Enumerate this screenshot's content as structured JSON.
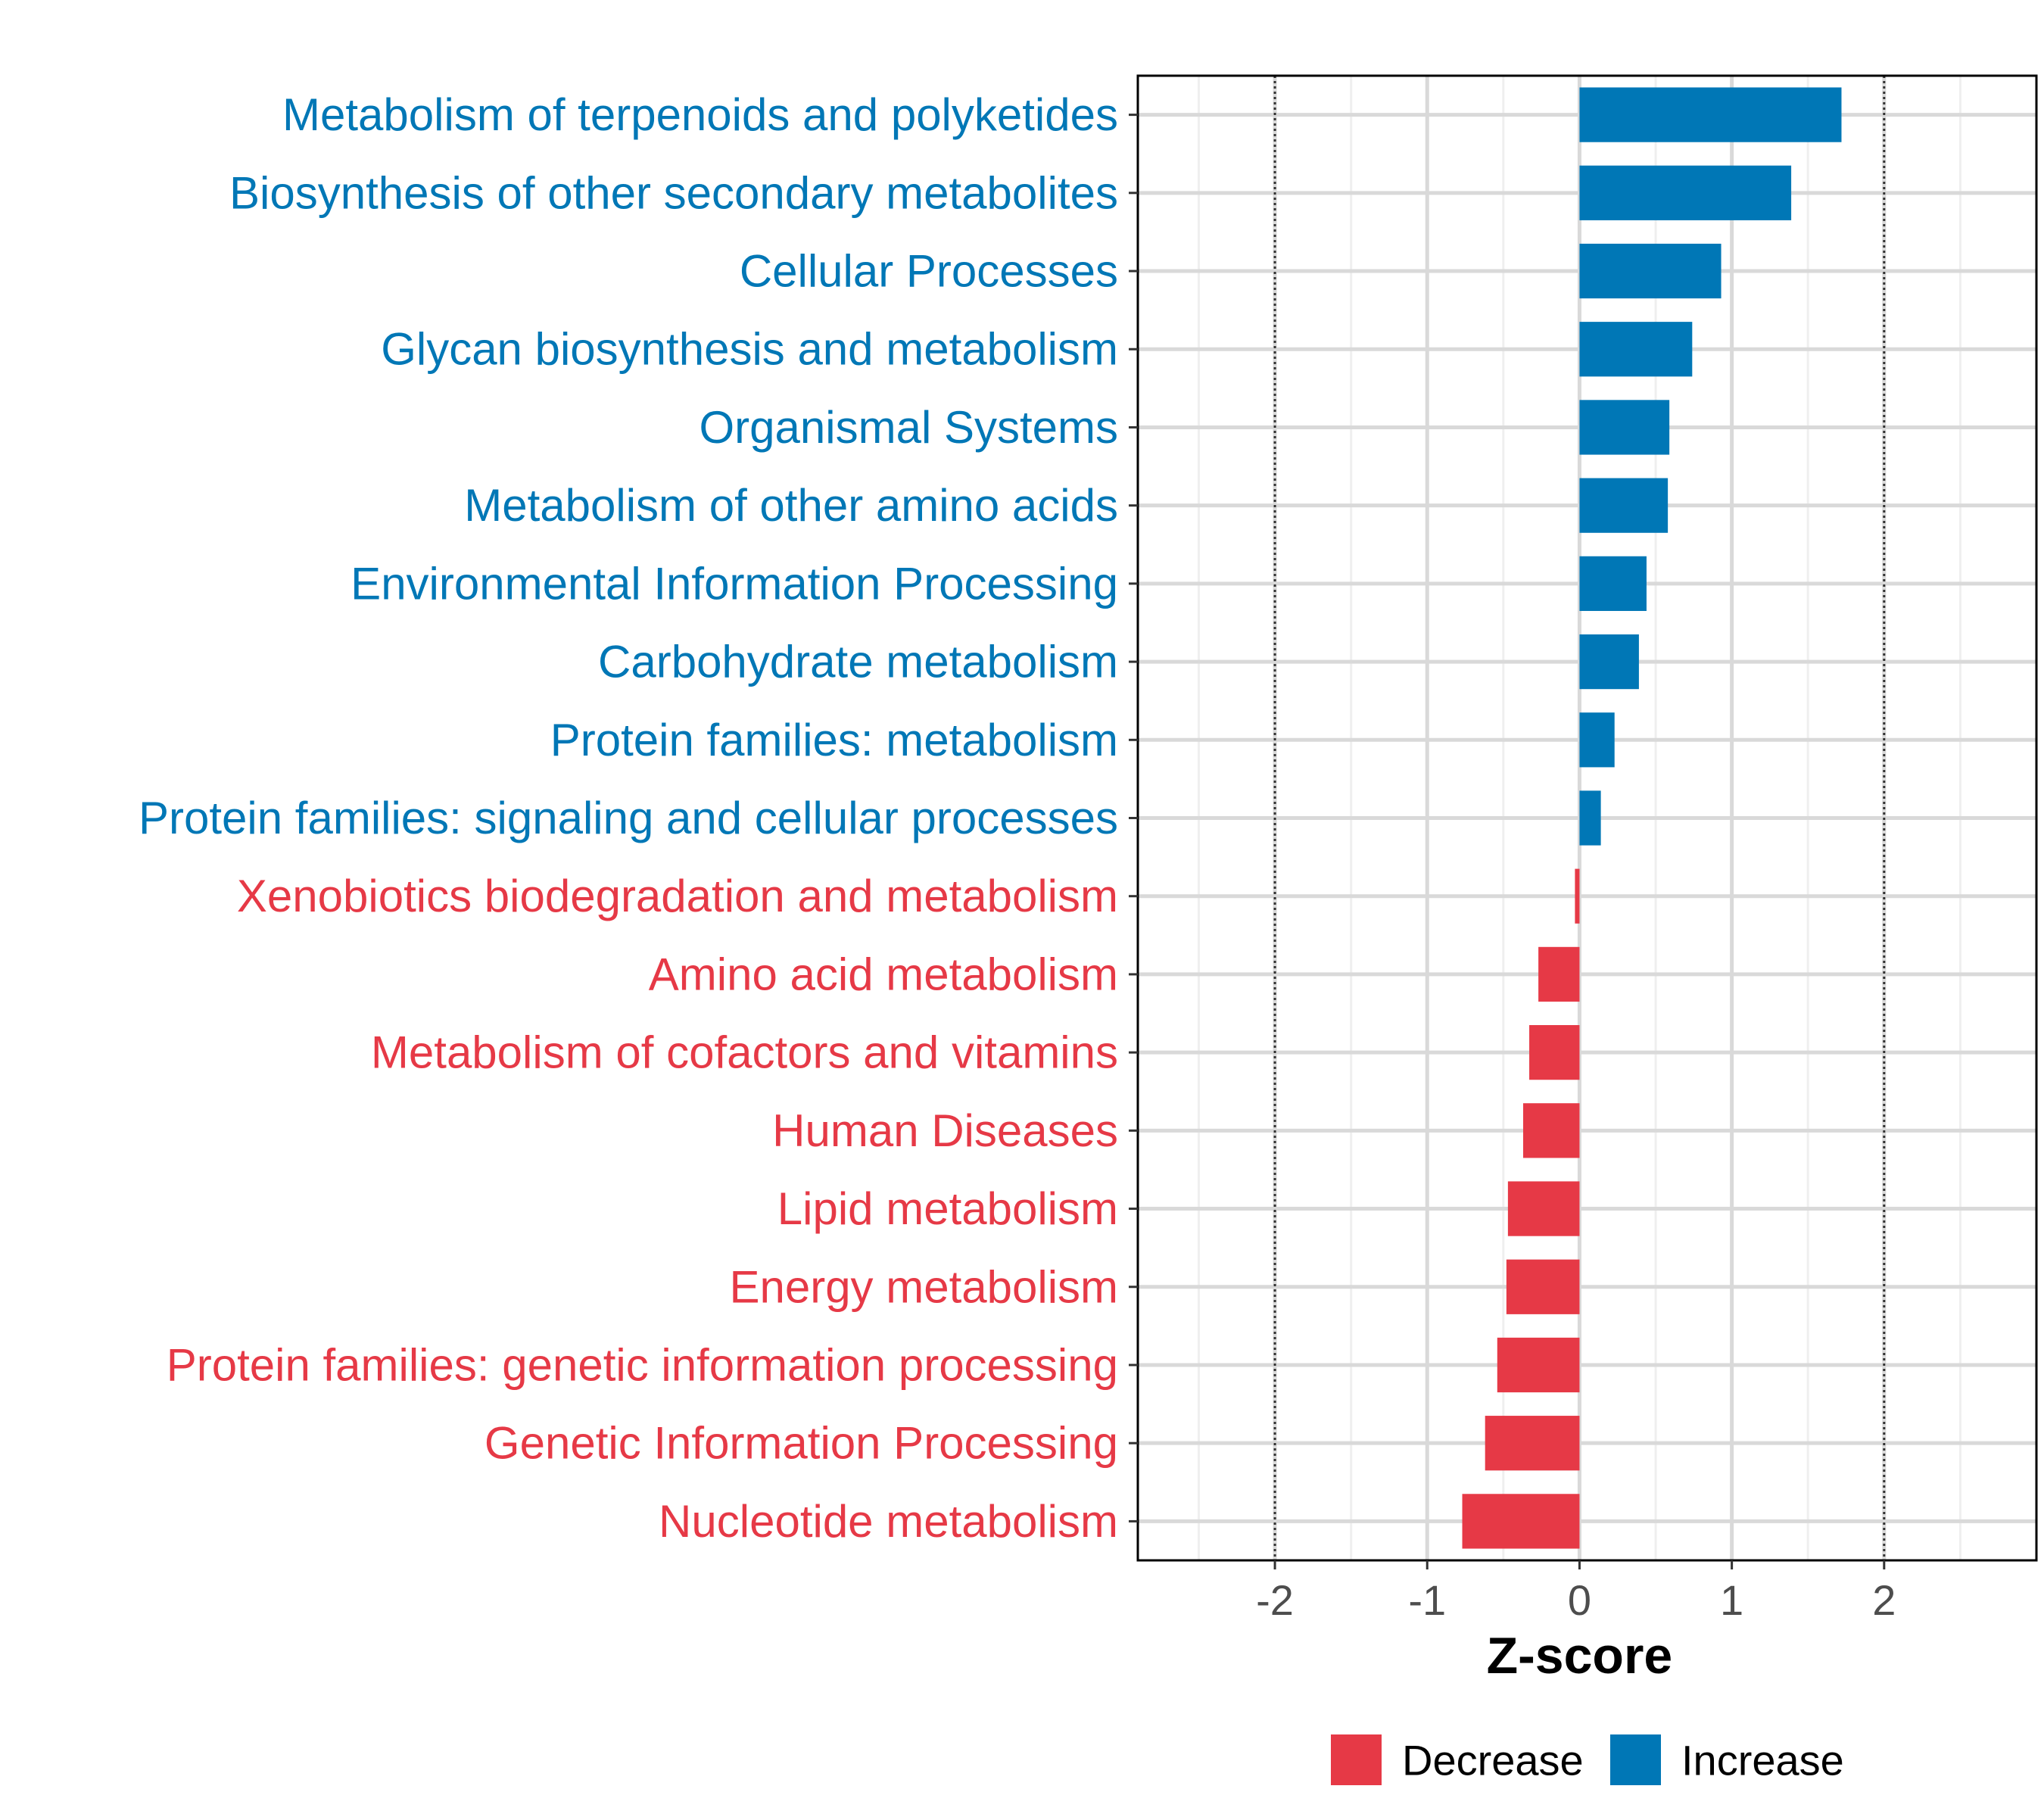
{
  "chart_data": {
    "type": "bar",
    "orientation": "horizontal",
    "title": "",
    "xlabel": "Z-score",
    "ylabel": "",
    "xlim": [
      -2.9,
      3.0
    ],
    "xticks": [
      "-2",
      "-1",
      "0",
      "1",
      "2"
    ],
    "reference_lines": [
      -2,
      2
    ],
    "grid": true,
    "legend_position": "bottom",
    "colors": {
      "Decrease": "#e63946",
      "Increase": "#0077b6"
    },
    "legend": [
      {
        "label": "Decrease",
        "color": "#e63946"
      },
      {
        "label": "Increase",
        "color": "#0077b6"
      }
    ],
    "categories": [
      "Metabolism of terpenoids and polyketides",
      "Biosynthesis of other secondary metabolites",
      "Cellular Processes",
      "Glycan biosynthesis and metabolism",
      "Organismal Systems",
      "Metabolism of other amino acids",
      "Environmental Information Processing",
      "Carbohydrate metabolism",
      "Protein families: metabolism",
      "Protein families: signaling and cellular processes",
      "Xenobiotics biodegradation and metabolism",
      "Amino acid metabolism",
      "Metabolism of cofactors and vitamins",
      "Human Diseases",
      "Lipid metabolism",
      "Energy metabolism",
      "Protein families: genetic information processing",
      "Genetic Information Processing",
      "Nucleotide metabolism"
    ],
    "values": [
      1.72,
      1.39,
      0.93,
      0.74,
      0.59,
      0.58,
      0.44,
      0.39,
      0.23,
      0.14,
      -0.03,
      -0.27,
      -0.33,
      -0.37,
      -0.47,
      -0.48,
      -0.54,
      -0.62,
      -0.77
    ],
    "groups": [
      "Increase",
      "Increase",
      "Increase",
      "Increase",
      "Increase",
      "Increase",
      "Increase",
      "Increase",
      "Increase",
      "Increase",
      "Decrease",
      "Decrease",
      "Decrease",
      "Decrease",
      "Decrease",
      "Decrease",
      "Decrease",
      "Decrease",
      "Decrease"
    ]
  }
}
